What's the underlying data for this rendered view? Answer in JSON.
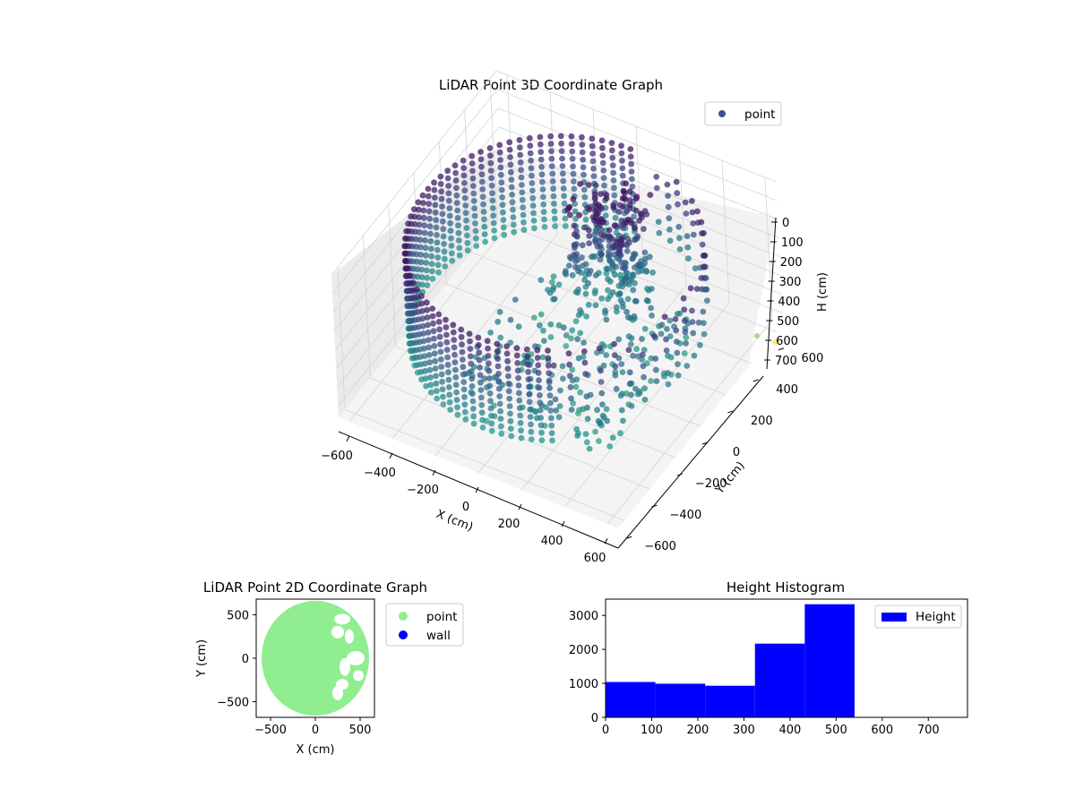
{
  "chart_data": [
    {
      "type": "scatter",
      "projection": "3d",
      "title": "LiDAR Point 3D Coordinate Graph",
      "xlabel": "X (cm)",
      "ylabel": "Y (cm)",
      "zlabel": "H (cm)",
      "xlim": [
        -650,
        650
      ],
      "ylim": [
        -650,
        650
      ],
      "zlim": [
        760,
        0
      ],
      "z_axis_inverted": true,
      "grid": true,
      "legend": {
        "placement": "top-right",
        "entries": [
          "point"
        ]
      },
      "xticks": [
        "−600",
        "−400",
        "−200",
        "0",
        "200",
        "400",
        "600"
      ],
      "yticks": [
        "−600",
        "−400",
        "−200",
        "0",
        "200",
        "400",
        "600"
      ],
      "zticks": [
        "0",
        "100",
        "200",
        "300",
        "400",
        "500",
        "600",
        "700"
      ],
      "colormap": "viridis",
      "series": [
        {
          "name": "point",
          "color": "#3b528b",
          "shape": "circular ring scan (radius ~600 cm) with a partial dense block near x 0–200, y 200–400 and an inner structure on the +x side"
        }
      ]
    },
    {
      "type": "scatter",
      "title": "LiDAR Point 2D Coordinate Graph",
      "xlabel": "X (cm)",
      "ylabel": "Y (cm)",
      "xlim": [
        -660,
        660
      ],
      "ylim": [
        -680,
        680
      ],
      "xticks": [
        "−500",
        "0",
        "500"
      ],
      "yticks": [
        "−500",
        "0",
        "500"
      ],
      "legend": {
        "placement": "outside-right",
        "entries": [
          "point",
          "wall"
        ]
      },
      "series": [
        {
          "name": "point",
          "color": "#90ee90",
          "shape": "filled disc radius ~600 cm centred near (0,0) with gaps on the +x side"
        },
        {
          "name": "wall",
          "color": "#0000ff"
        }
      ]
    },
    {
      "type": "bar",
      "title": "Height Histogram",
      "xlabel": "",
      "ylabel": "",
      "xlim": [
        0,
        785
      ],
      "ylim": [
        0,
        3480
      ],
      "xticks": [
        "0",
        "100",
        "200",
        "300",
        "400",
        "500",
        "600",
        "700"
      ],
      "yticks": [
        "0",
        "1000",
        "2000",
        "3000"
      ],
      "legend": {
        "placement": "top-right",
        "entries": [
          "Height"
        ]
      },
      "series": [
        {
          "name": "Height",
          "color": "#0000ff",
          "bins": [
            {
              "x0": 0,
              "x1": 108,
              "count": 1040
            },
            {
              "x0": 108,
              "x1": 216,
              "count": 990
            },
            {
              "x0": 216,
              "x1": 324,
              "count": 930
            },
            {
              "x0": 324,
              "x1": 432,
              "count": 2170
            },
            {
              "x0": 432,
              "x1": 540,
              "count": 3330
            },
            {
              "x0": 540,
              "x1": 648,
              "count": 0
            },
            {
              "x0": 648,
              "x1": 756,
              "count": 0
            }
          ]
        }
      ]
    }
  ]
}
